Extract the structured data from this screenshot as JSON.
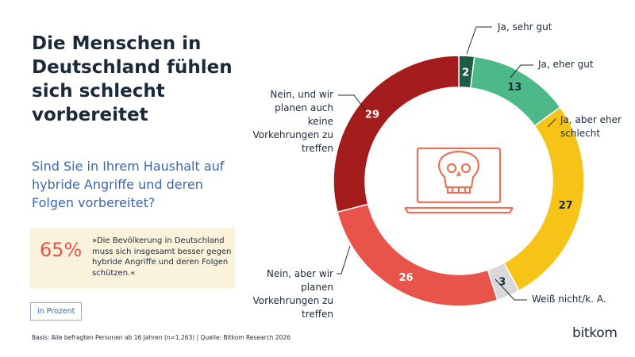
{
  "chart_data": {
    "type": "donut",
    "title": "Die Menschen in Deutschland fühlen sich schlecht vorbereitet",
    "subtitle": "Sind Sie in Ihrem Haushalt auf hybride Angriffe und deren Folgen vorbereitet?",
    "categories": [
      "Ja, sehr gut",
      "Ja, eher gut",
      "Ja, aber eher schlecht",
      "Weiß nicht/k. A.",
      "Nein, aber wir planen Vorkehrungen zu treffen",
      "Nein, und wir planen auch keine Vorkehrungen zu treffen"
    ],
    "values": [
      2,
      13,
      27,
      3,
      26,
      29
    ],
    "colors": [
      "#1d5c46",
      "#4db888",
      "#f6c419",
      "#d9d9d9",
      "#e8534a",
      "#a41c1c"
    ]
  },
  "callout": {
    "figure": "65%",
    "text": "»Die Bevölkerung in Deutschland muss sich insgesamt besser gegen hybride Angriffe und deren Folgen schützen.«"
  },
  "unit_note": "in Prozent",
  "footer": "Basis: Alle befragten Personen ab 16 Jahren (n=1.263) | Quelle: Bitkom Research 2026",
  "logo": "bitkom"
}
